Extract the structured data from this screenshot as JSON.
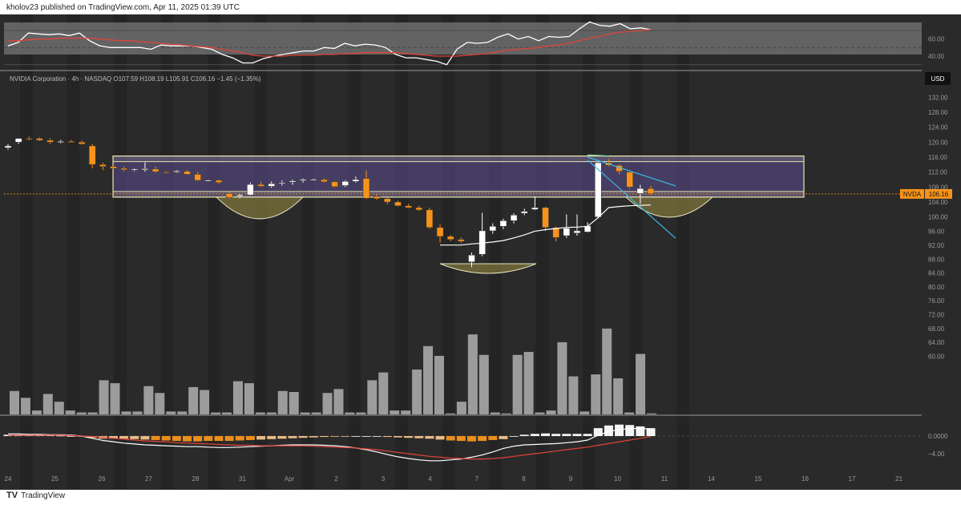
{
  "header": {
    "publish_line": "kholov23 published on TradingView.com, Apr 11, 2025 01:39 UTC"
  },
  "footer": {
    "brand": "TradingView"
  },
  "symbol_info": {
    "text": "NVIDIA Corporation · 4h · NASDAQ  O107.59  H108.19  L105.91  C106.16  −1.45 (−1.35%)",
    "currency": "USD",
    "ticker": "NVDA",
    "last_price": "106.16"
  },
  "colors": {
    "background": "#2a2a2a",
    "band": "#353535",
    "up": "#ffffff",
    "down": "#f7931a",
    "rsi_line": "#ffffff",
    "rsi_ma": "#e0443a",
    "macd_signal": "#e0443a",
    "zone": "#5d4f8f",
    "zone_border": "#e8e3b0",
    "cup_fill": "#8a8040",
    "trendline": "#3ab8e8",
    "price_line": "#f7931a"
  },
  "chart_data": [
    {
      "type": "line",
      "name": "RSI panel",
      "yticks": [
        "60.00",
        "40.00"
      ],
      "ylim": [
        25,
        85
      ],
      "series": [
        {
          "name": "RSI",
          "values": [
            52,
            56,
            67,
            66,
            65,
            66,
            64,
            67,
            58,
            52,
            50,
            50,
            50,
            50,
            48,
            53,
            52,
            52,
            52,
            50,
            48,
            42,
            38,
            32,
            32,
            37,
            40,
            42,
            44,
            46,
            46,
            50,
            49,
            55,
            52,
            54,
            53,
            50,
            42,
            38,
            38,
            36,
            34,
            30,
            48,
            56,
            55,
            56,
            62,
            66,
            60,
            63,
            58,
            63,
            62,
            63,
            72,
            80,
            76,
            75,
            78,
            72,
            73,
            71
          ]
        },
        {
          "name": "RSI MA",
          "values": [
            58,
            58,
            59,
            60,
            60,
            61,
            61,
            61,
            61,
            60,
            59,
            58,
            58,
            57,
            56,
            55,
            54,
            53,
            52,
            51,
            50,
            48,
            46,
            44,
            41,
            40,
            40,
            40,
            41,
            41,
            41,
            42,
            42,
            43,
            43,
            44,
            44,
            44,
            44,
            43,
            42,
            41,
            40,
            40,
            40,
            41,
            42,
            43,
            45,
            47,
            48,
            49,
            50,
            52,
            53,
            55,
            58,
            61,
            63,
            66,
            68,
            69,
            70,
            71
          ]
        }
      ]
    },
    {
      "type": "candlestick",
      "name": "Price panel",
      "ylim": [
        47,
        137
      ],
      "yticks": [
        "132.00",
        "128.00",
        "124.00",
        "120.00",
        "116.00",
        "112.00",
        "108.00",
        "104.00",
        "100.00",
        "96.00",
        "92.00",
        "88.00",
        "84.00",
        "80.00",
        "76.00",
        "72.00",
        "68.00",
        "64.00",
        "60.00"
      ],
      "x_labels": [
        "24",
        "25",
        "26",
        "27",
        "28",
        "31",
        "Apr",
        "2",
        "3",
        "4",
        "7",
        "8",
        "9",
        "10",
        "11",
        "14",
        "15",
        "16",
        "17",
        "21"
      ],
      "last_price": 106.16,
      "candles": [
        {
          "o": 118.5,
          "h": 119.5,
          "l": 118,
          "c": 119
        },
        {
          "o": 120,
          "h": 121,
          "l": 119.5,
          "c": 121
        },
        {
          "o": 121,
          "h": 121.5,
          "l": 120.5,
          "c": 120.8
        },
        {
          "o": 121,
          "h": 121.3,
          "l": 120.3,
          "c": 120.5
        },
        {
          "o": 120.5,
          "h": 121,
          "l": 119.5,
          "c": 120
        },
        {
          "o": 120,
          "h": 120.6,
          "l": 119.7,
          "c": 120.2
        },
        {
          "o": 120.2,
          "h": 120.6,
          "l": 119.9,
          "c": 120.1
        },
        {
          "o": 120,
          "h": 120.4,
          "l": 119.3,
          "c": 119.5
        },
        {
          "o": 119,
          "h": 119.5,
          "l": 113,
          "c": 114
        },
        {
          "o": 114,
          "h": 114.5,
          "l": 112.5,
          "c": 113.5
        },
        {
          "o": 113.5,
          "h": 114,
          "l": 112.5,
          "c": 113
        },
        {
          "o": 113,
          "h": 113.5,
          "l": 112.2,
          "c": 112.6
        },
        {
          "o": 112.6,
          "h": 113,
          "l": 112.2,
          "c": 112.8
        },
        {
          "o": 112.6,
          "h": 114.6,
          "l": 112.1,
          "c": 112.9
        },
        {
          "o": 112.8,
          "h": 113.4,
          "l": 111.8,
          "c": 112.1
        },
        {
          "o": 112,
          "h": 112.3,
          "l": 111.7,
          "c": 111.9
        },
        {
          "o": 112,
          "h": 112.5,
          "l": 111.8,
          "c": 112.3
        },
        {
          "o": 112.2,
          "h": 112.6,
          "l": 111.3,
          "c": 111.4
        },
        {
          "o": 111.4,
          "h": 112,
          "l": 109.6,
          "c": 109.8
        },
        {
          "o": 109.8,
          "h": 110,
          "l": 109.5,
          "c": 109.8
        },
        {
          "o": 109.8,
          "h": 110,
          "l": 108.9,
          "c": 109.2
        },
        {
          "o": 106.3,
          "h": 107,
          "l": 104.8,
          "c": 105.2
        },
        {
          "o": 105.5,
          "h": 106.2,
          "l": 105,
          "c": 105.9
        },
        {
          "o": 105.9,
          "h": 109.2,
          "l": 105.7,
          "c": 108.7
        },
        {
          "o": 108.7,
          "h": 109.4,
          "l": 108,
          "c": 108.2
        },
        {
          "o": 108.2,
          "h": 109.5,
          "l": 107.8,
          "c": 108.9
        },
        {
          "o": 109,
          "h": 109.8,
          "l": 108.4,
          "c": 109.2
        },
        {
          "o": 109.3,
          "h": 110,
          "l": 108.6,
          "c": 109.6
        },
        {
          "o": 109.7,
          "h": 110.3,
          "l": 109.2,
          "c": 110
        },
        {
          "o": 110,
          "h": 110.3,
          "l": 109.7,
          "c": 110
        },
        {
          "o": 110,
          "h": 110.3,
          "l": 109.2,
          "c": 109.4
        },
        {
          "o": 109.4,
          "h": 109.6,
          "l": 107.9,
          "c": 108.1
        },
        {
          "o": 108.4,
          "h": 109.8,
          "l": 108,
          "c": 109.5
        },
        {
          "o": 109.5,
          "h": 110.8,
          "l": 109.2,
          "c": 110
        },
        {
          "o": 110.3,
          "h": 112.4,
          "l": 104.8,
          "c": 105
        },
        {
          "o": 105.5,
          "h": 106,
          "l": 104.6,
          "c": 104.9
        },
        {
          "o": 104.9,
          "h": 105.3,
          "l": 103.4,
          "c": 104
        },
        {
          "o": 104,
          "h": 104.4,
          "l": 102.8,
          "c": 103
        },
        {
          "o": 103,
          "h": 103.5,
          "l": 102.3,
          "c": 102.5
        },
        {
          "o": 102.5,
          "h": 103,
          "l": 101.6,
          "c": 101.9
        },
        {
          "o": 101.9,
          "h": 102.5,
          "l": 96.8,
          "c": 97.2
        },
        {
          "o": 97.2,
          "h": 98,
          "l": 93.2,
          "c": 94.8
        },
        {
          "o": 94.8,
          "h": 95.2,
          "l": 93.5,
          "c": 94
        },
        {
          "o": 94,
          "h": 94.5,
          "l": 93,
          "c": 93.5
        },
        {
          "o": 88,
          "h": 90.5,
          "l": 86.6,
          "c": 89.8
        },
        {
          "o": 90,
          "h": 101.1,
          "l": 89.5,
          "c": 96.3
        },
        {
          "o": 96.3,
          "h": 98.3,
          "l": 95.5,
          "c": 97.5
        },
        {
          "o": 97.5,
          "h": 99.5,
          "l": 96.8,
          "c": 99
        },
        {
          "o": 99,
          "h": 101,
          "l": 98.3,
          "c": 100.5
        },
        {
          "o": 101,
          "h": 102.2,
          "l": 100.5,
          "c": 101.5
        },
        {
          "o": 102,
          "h": 105.5,
          "l": 101.8,
          "c": 102.5
        },
        {
          "o": 102.5,
          "h": 102.8,
          "l": 96.2,
          "c": 97.2
        },
        {
          "o": 97.2,
          "h": 97.5,
          "l": 93.5,
          "c": 94.5
        },
        {
          "o": 95,
          "h": 100.7,
          "l": 94.4,
          "c": 97
        },
        {
          "o": 95.7,
          "h": 100.7,
          "l": 95,
          "c": 96.3
        },
        {
          "o": 96,
          "h": 98.6,
          "l": 95.8,
          "c": 97.6
        },
        {
          "o": 100,
          "h": 114.8,
          "l": 99.6,
          "c": 114.5
        },
        {
          "o": 114.5,
          "h": 115.5,
          "l": 113.5,
          "c": 113.8
        },
        {
          "o": 113.8,
          "h": 114,
          "l": 111.5,
          "c": 112.2
        },
        {
          "o": 112,
          "h": 112.2,
          "l": 107.5,
          "c": 108
        },
        {
          "o": 106.3,
          "h": 108.6,
          "l": 103.5,
          "c": 107.6
        },
        {
          "o": 107.6,
          "h": 108.2,
          "l": 105.9,
          "c": 106.2
        }
      ],
      "volume": [
        24,
        17,
        4,
        21,
        13,
        4,
        2,
        2,
        35,
        32,
        3,
        3,
        29,
        22,
        3,
        3,
        28,
        25,
        2,
        2,
        34,
        32,
        2,
        2,
        24,
        23,
        2,
        2,
        22,
        26,
        2,
        2,
        35,
        43,
        4,
        4,
        46,
        70,
        60,
        1,
        13,
        82,
        61,
        2,
        1,
        61,
        64,
        2,
        4,
        74,
        39,
        3,
        41,
        88,
        37,
        2,
        62,
        1
      ]
    },
    {
      "type": "bar",
      "name": "MACD panel",
      "yticks": [
        "0.0000",
        "−4.00"
      ],
      "ylim": [
        -8,
        4
      ],
      "histogram": [
        0.3,
        0.3,
        0.3,
        0.3,
        0.2,
        0.1,
        0,
        0,
        -0.4,
        -0.6,
        -0.6,
        -0.6,
        -0.7,
        -0.8,
        -0.9,
        -1.0,
        -1.1,
        -1.2,
        -1.2,
        -1.1,
        -1.1,
        -1.1,
        -1.0,
        -0.9,
        -0.8,
        -0.7,
        -0.6,
        -0.5,
        -0.4,
        -0.3,
        -0.2,
        -0.1,
        -0.1,
        0,
        0,
        0,
        -0.2,
        -0.3,
        -0.4,
        -0.5,
        -0.6,
        -0.8,
        -1.0,
        -1.1,
        -1.2,
        -1.1,
        -0.9,
        -0.7,
        0,
        0.3,
        0.5,
        0.6,
        0.5,
        0.5,
        0.5,
        0.5,
        1.8,
        2.4,
        2.6,
        2.5,
        2.2,
        1.8
      ],
      "series": [
        {
          "name": "MACD",
          "values": [
            0.5,
            0.5,
            0.4,
            0.4,
            0.3,
            0.3,
            0.2,
            0,
            -0.5,
            -1,
            -1.3,
            -1.6,
            -1.8,
            -2,
            -2.1,
            -2.2,
            -2.3,
            -2.4,
            -2.4,
            -2.5,
            -2.6,
            -2.6,
            -2.5,
            -2.4,
            -2.3,
            -2.2,
            -2.1,
            -2,
            -2,
            -2,
            -2.1,
            -2.2,
            -2.4,
            -2.7,
            -3.1,
            -3.6,
            -4.2,
            -4.7,
            -5.1,
            -5.4,
            -5.6,
            -5.6,
            -5.4,
            -5.2,
            -4.8,
            -4.3,
            -3.6,
            -2.8,
            -2.3,
            -2,
            -1.9,
            -1.8,
            -1.7,
            -1.5,
            -1.3,
            -0.9,
            0.2,
            1,
            1.5,
            1.7,
            1.7,
            1.6
          ]
        },
        {
          "name": "Signal",
          "values": [
            0.2,
            0.2,
            0.2,
            0.2,
            0.2,
            0.2,
            0.1,
            0,
            -0.1,
            -0.3,
            -0.5,
            -0.7,
            -0.9,
            -1.1,
            -1.2,
            -1.3,
            -1.5,
            -1.6,
            -1.7,
            -1.8,
            -1.9,
            -2,
            -2.1,
            -2.1,
            -2.2,
            -2.2,
            -2.2,
            -2.2,
            -2.2,
            -2.3,
            -2.4,
            -2.5,
            -2.6,
            -2.7,
            -2.9,
            -3.1,
            -3.4,
            -3.7,
            -4,
            -4.3,
            -4.6,
            -4.8,
            -5,
            -5.1,
            -5.2,
            -5.2,
            -5.1,
            -4.9,
            -4.6,
            -4.3,
            -4,
            -3.7,
            -3.4,
            -3.1,
            -2.8,
            -2.5,
            -2.1,
            -1.7,
            -1.3,
            -0.9,
            -0.5,
            -0.1
          ]
        }
      ]
    }
  ]
}
